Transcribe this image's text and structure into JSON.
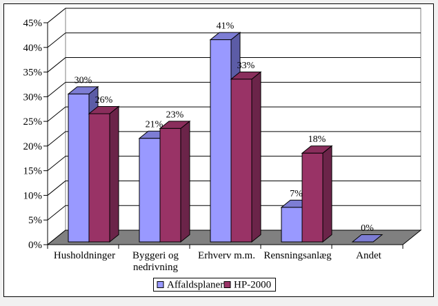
{
  "window": {
    "outer_background": "#f1f1f1",
    "frame_border_color": "#000000",
    "canvas_background": "#ffffff"
  },
  "chart_data": {
    "type": "bar",
    "style": "3d-clustered-column",
    "title": "",
    "categories": [
      "Husholdninger",
      "Byggeri og nedrivning",
      "Erhverv m.m.",
      "Rensningsanlæg",
      "Andet"
    ],
    "category_label_lines": [
      [
        "Husholdninger"
      ],
      [
        "Byggeri og",
        "nedrivning"
      ],
      [
        "Erhverv m.m."
      ],
      [
        "Rensningsanlæg"
      ],
      [
        "Andet"
      ]
    ],
    "series": [
      {
        "name": "Affaldsplaner",
        "values": [
          30,
          21,
          41,
          7,
          0
        ],
        "data_labels": [
          "30%",
          "21%",
          "41%",
          "7%",
          "0%"
        ],
        "colors": {
          "front": "#9999ff",
          "top": "#7d7dd4",
          "side": "#5c5ca6"
        }
      },
      {
        "name": "HP-2000",
        "values": [
          26,
          23,
          33,
          18,
          null
        ],
        "data_labels": [
          "26%",
          "23%",
          "33%",
          "18%",
          null
        ],
        "colors": {
          "front": "#993366",
          "top": "#8a2e5c",
          "side": "#6b2449"
        }
      }
    ],
    "y_axis": {
      "min": 0,
      "max": 45,
      "step": 5,
      "tick_labels": [
        "0%",
        "5%",
        "10%",
        "15%",
        "20%",
        "25%",
        "30%",
        "35%",
        "40%",
        "45%"
      ]
    },
    "legend": {
      "position": "bottom",
      "items": [
        {
          "label": "Affaldsplaner",
          "color": "#9999ff"
        },
        {
          "label": "HP-2000",
          "color": "#993366"
        }
      ]
    },
    "colors": {
      "floor": "#808080",
      "wall": "#ffffff",
      "wall_border": "#808080",
      "gridline": "#000000",
      "axis": "#000000",
      "text": "#000000",
      "bar_outline": "#000000",
      "legend_background": "#ffffff",
      "legend_border": "#000000"
    },
    "gridlines": true
  }
}
